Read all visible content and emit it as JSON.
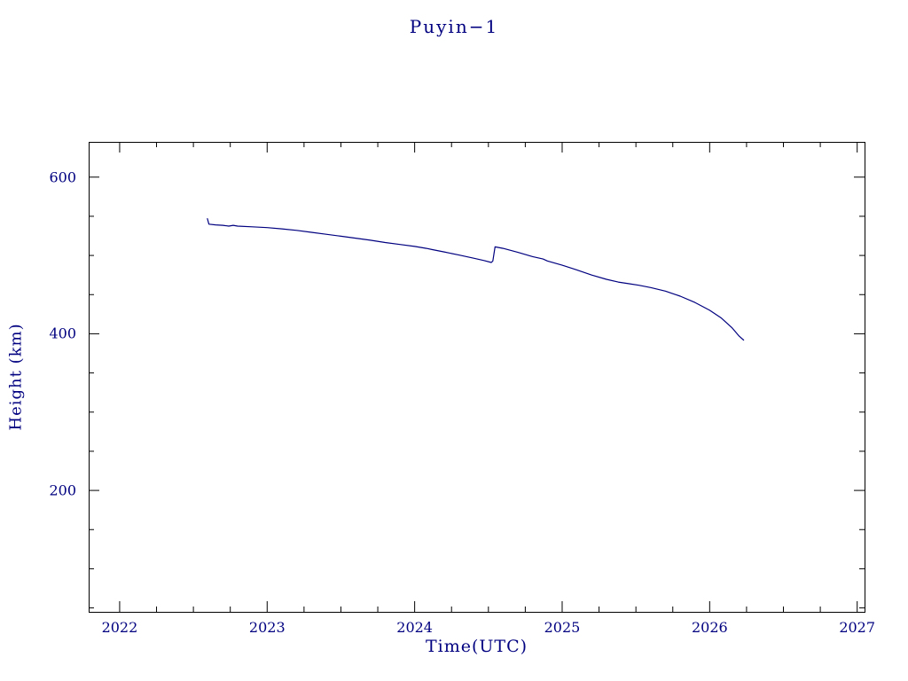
{
  "page": {
    "background": "#ffffff"
  },
  "chart_data": {
    "type": "line",
    "title": "Puyin−1",
    "xlabel": "Time(UTC)",
    "ylabel": "Height (km)",
    "xlim": [
      2021.79,
      2027.05
    ],
    "ylim": [
      45,
      645
    ],
    "xticks": [
      2022,
      2023,
      2024,
      2025,
      2026,
      2027
    ],
    "yticks": [
      200,
      400,
      600
    ],
    "x_minor_step": 0.25,
    "y_minor_step": 50,
    "grid": false,
    "legend": false,
    "line_color": "#000080",
    "frame_color": "#000000",
    "text_color": "#000080",
    "series": [
      {
        "name": "height",
        "points": [
          [
            2022.595,
            547
          ],
          [
            2022.605,
            540
          ],
          [
            2022.65,
            539
          ],
          [
            2022.7,
            538.5
          ],
          [
            2022.74,
            537.5
          ],
          [
            2022.77,
            538.5
          ],
          [
            2022.8,
            537.5
          ],
          [
            2022.9,
            536.5
          ],
          [
            2023.0,
            535.5
          ],
          [
            2023.1,
            534
          ],
          [
            2023.2,
            532
          ],
          [
            2023.3,
            529.5
          ],
          [
            2023.4,
            527
          ],
          [
            2023.5,
            524.5
          ],
          [
            2023.6,
            522
          ],
          [
            2023.7,
            519.5
          ],
          [
            2023.8,
            516.5
          ],
          [
            2023.9,
            514
          ],
          [
            2024.0,
            511.5
          ],
          [
            2024.08,
            509
          ],
          [
            2024.12,
            507.5
          ],
          [
            2024.2,
            504.5
          ],
          [
            2024.3,
            500.5
          ],
          [
            2024.4,
            496.5
          ],
          [
            2024.47,
            493.5
          ],
          [
            2024.52,
            491
          ],
          [
            2024.53,
            493
          ],
          [
            2024.545,
            511
          ],
          [
            2024.6,
            509
          ],
          [
            2024.7,
            504
          ],
          [
            2024.8,
            498.5
          ],
          [
            2024.87,
            495.5
          ],
          [
            2024.9,
            493
          ],
          [
            2025.0,
            487.5
          ],
          [
            2025.1,
            481.5
          ],
          [
            2025.2,
            475
          ],
          [
            2025.3,
            469.5
          ],
          [
            2025.38,
            466
          ],
          [
            2025.45,
            464
          ],
          [
            2025.52,
            462
          ],
          [
            2025.6,
            459
          ],
          [
            2025.7,
            454.5
          ],
          [
            2025.8,
            448
          ],
          [
            2025.9,
            440
          ],
          [
            2026.0,
            430
          ],
          [
            2026.08,
            420
          ],
          [
            2026.15,
            408
          ],
          [
            2026.2,
            397
          ],
          [
            2026.23,
            392
          ]
        ]
      }
    ]
  }
}
